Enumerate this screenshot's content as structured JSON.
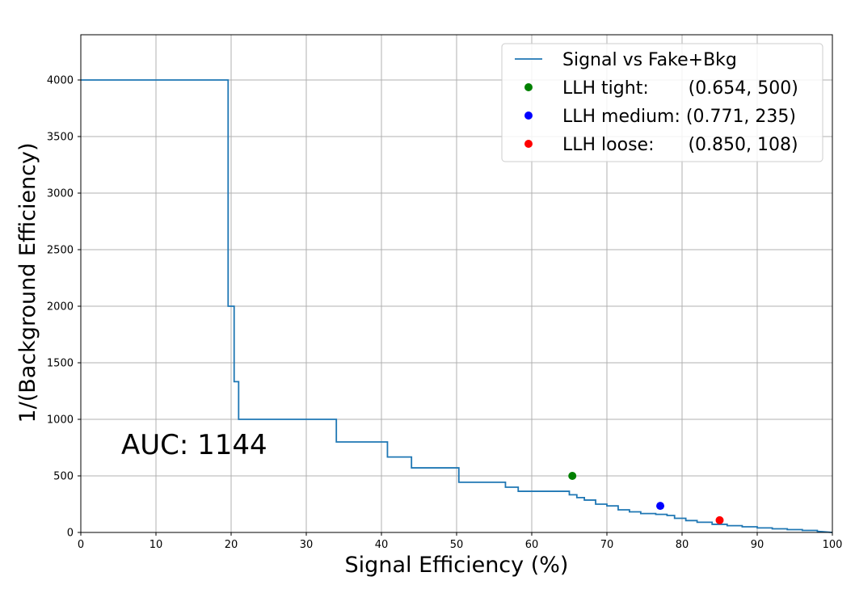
{
  "chart_data": {
    "type": "line",
    "xlabel": "Signal Efficiency (%)",
    "ylabel": "1/(Background Efficiency)",
    "xlim": [
      0,
      100
    ],
    "ylim": [
      0,
      4400
    ],
    "xticks": [
      0,
      10,
      20,
      30,
      40,
      50,
      60,
      70,
      80,
      90,
      100
    ],
    "yticks": [
      0,
      500,
      1000,
      1500,
      2000,
      2500,
      3000,
      3500,
      4000
    ],
    "grid": true,
    "legend_position": "top-right",
    "annotation": "AUC: 1144",
    "colors": {
      "curve": "#1f77b4",
      "tight": "#008000",
      "medium": "#0000ff",
      "loose": "#ff0000",
      "grid": "#b0b0b0"
    },
    "series": [
      {
        "name": "Signal vs Fake+Bkg",
        "style": "step",
        "x": [
          0,
          19.6,
          19.6,
          20.4,
          20.4,
          21.0,
          21.0,
          34.0,
          34.0,
          40.8,
          40.8,
          44.0,
          44.0,
          50.3,
          50.3,
          56.5,
          56.5,
          58.2,
          58.2,
          65.0,
          65.0,
          66.0,
          66.0,
          67.0,
          67.0,
          68.5,
          68.5,
          70.0,
          70.0,
          71.5,
          71.5,
          73.0,
          73.0,
          74.5,
          74.5,
          76.5,
          76.5,
          78.0,
          78.0,
          79.0,
          79.0,
          80.5,
          80.5,
          82.0,
          82.0,
          84.0,
          84.0,
          86.0,
          86.0,
          88.0,
          88.0,
          90.0,
          90.0,
          92.0,
          92.0,
          94.0,
          94.0,
          96.0,
          96.0,
          98.0,
          98.0,
          100.0
        ],
        "y": [
          4000,
          4000,
          2000,
          2000,
          1333,
          1333,
          1000,
          1000,
          800,
          800,
          667,
          667,
          571,
          571,
          444,
          444,
          400,
          400,
          364,
          364,
          333,
          333,
          308,
          308,
          286,
          286,
          250,
          250,
          235,
          235,
          200,
          200,
          182,
          182,
          167,
          167,
          160,
          160,
          150,
          150,
          125,
          125,
          105,
          105,
          90,
          90,
          72,
          72,
          60,
          60,
          50,
          50,
          40,
          40,
          32,
          32,
          25,
          25,
          18,
          18,
          10,
          0
        ]
      },
      {
        "name": "LLH tight:       (0.654, 500)",
        "style": "point",
        "x": [
          65.4
        ],
        "y": [
          500
        ]
      },
      {
        "name": "LLH medium: (0.771, 235)",
        "style": "point",
        "x": [
          77.1
        ],
        "y": [
          235
        ]
      },
      {
        "name": "LLH loose:      (0.850, 108)",
        "style": "point",
        "x": [
          85.0
        ],
        "y": [
          108
        ]
      }
    ]
  }
}
